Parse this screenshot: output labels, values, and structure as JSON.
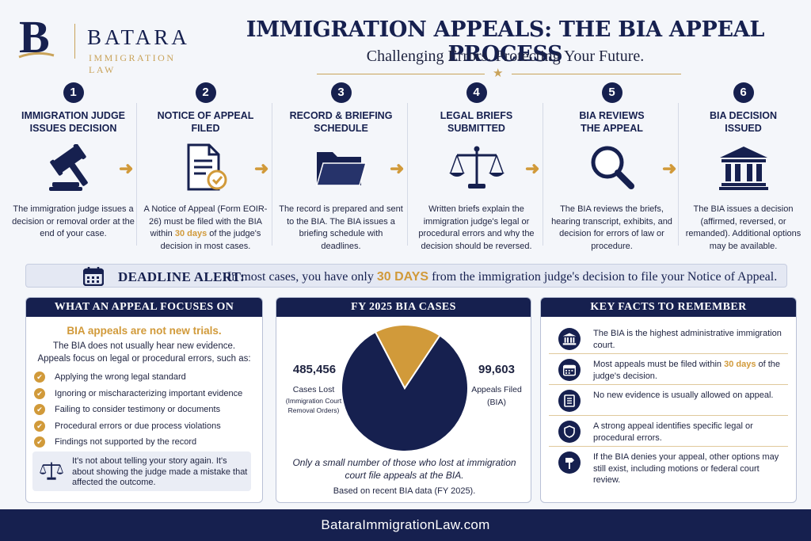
{
  "brand": {
    "initial": "B",
    "name": "BATARA",
    "tagline": "IMMIGRATION LAW",
    "colors": {
      "navy": "#16204f",
      "gold": "#d19a3a"
    }
  },
  "header": {
    "title": "IMMIGRATION APPEALS: THE BIA APPEAL PROCESS",
    "subtitle": "Challenging Errors. Protecting Your Future."
  },
  "steps": [
    {
      "number": "1",
      "title_line1": "IMMIGRATION JUDGE",
      "title_line2": "ISSUES DECISION",
      "icon": "gavel-icon",
      "desc": "The immigration judge issues a decision or removal order at the end of your case."
    },
    {
      "number": "2",
      "title_line1": "NOTICE OF APPEAL",
      "title_line2": "FILED",
      "icon": "document-check-icon",
      "desc_pre": "A Notice of Appeal (Form EOIR-26) must be filed with the BIA within ",
      "desc_bold": "30 days",
      "desc_post": " of the judge's decision in most cases."
    },
    {
      "number": "3",
      "title_line1": "RECORD & BRIEFING",
      "title_line2": "SCHEDULE",
      "icon": "folder-icon",
      "desc": "The record is prepared and sent to the BIA. The BIA issues a briefing schedule with deadlines."
    },
    {
      "number": "4",
      "title_line1": "LEGAL BRIEFS",
      "title_line2": "SUBMITTED",
      "icon": "scales-icon",
      "desc": "Written briefs explain the immigration judge's legal or procedural errors and why the decision should be reversed."
    },
    {
      "number": "5",
      "title_line1": "BIA REVIEWS",
      "title_line2": "THE APPEAL",
      "icon": "magnifier-icon",
      "desc": "The BIA reviews the briefs, hearing transcript, exhibits, and decision for errors of law or procedure."
    },
    {
      "number": "6",
      "title_line1": "BIA DECISION",
      "title_line2": "ISSUED",
      "icon": "courthouse-icon",
      "desc": "The BIA issues a decision (affirmed, reversed, or remanded). Additional options may be available."
    }
  ],
  "deadline": {
    "label": "DEADLINE ALERT:",
    "text_pre": "In most cases, you have only ",
    "text_bold": "30 DAYS",
    "text_post": " from the immigration judge's decision to file your Notice of Appeal."
  },
  "focus_panel": {
    "title": "WHAT AN APPEAL FOCUSES ON",
    "emphasis": "BIA appeals are not new trials.",
    "intro_line1": "The BIA does not usually hear new evidence.",
    "intro_line2": "Appeals focus on legal or procedural errors, such as:",
    "items": [
      "Applying the wrong legal standard",
      "Ignoring or mischaracterizing important evidence",
      "Failing to consider testimony or documents",
      "Procedural errors or due process violations",
      "Findings not supported by the record"
    ],
    "note": "It's not about telling your story again. It's about showing the judge made a mistake that affected the outcome."
  },
  "cases_panel": {
    "title": "FY 2025 BIA CASES",
    "lost_value": "485,456",
    "lost_label": "Cases Lost",
    "lost_sub": "(Immigration Court Removal Orders)",
    "filed_value": "99,603",
    "filed_label": "Appeals Filed",
    "filed_sub": "(BIA)",
    "caption": "Only a small number of those who lost at immigration court file appeals at the BIA.",
    "source": "Based on recent BIA data (FY 2025)."
  },
  "chart_data": {
    "type": "pie",
    "slices": [
      {
        "label": "Cases Lost",
        "value": 485456,
        "color": "#16204f"
      },
      {
        "label": "Appeals Filed",
        "value": 99603,
        "color": "#d19a3a"
      }
    ]
  },
  "facts_panel": {
    "title": "KEY FACTS TO REMEMBER",
    "items": [
      {
        "icon": "courthouse-icon",
        "text": "The BIA is the highest administrative immigration court."
      },
      {
        "icon": "calendar-icon",
        "text_pre": "Most appeals must be filed within ",
        "text_bold": "30 days",
        "text_post": " of the judge's decision."
      },
      {
        "icon": "document-icon",
        "text": "No new evidence is usually allowed on appeal."
      },
      {
        "icon": "shield-icon",
        "text": "A strong appeal identifies specific legal or procedural errors."
      },
      {
        "icon": "signpost-icon",
        "text": "If the BIA denies your appeal, other options may still exist, including motions or federal court review."
      }
    ]
  },
  "footer": {
    "url": "BataraImmigrationLaw.com"
  }
}
